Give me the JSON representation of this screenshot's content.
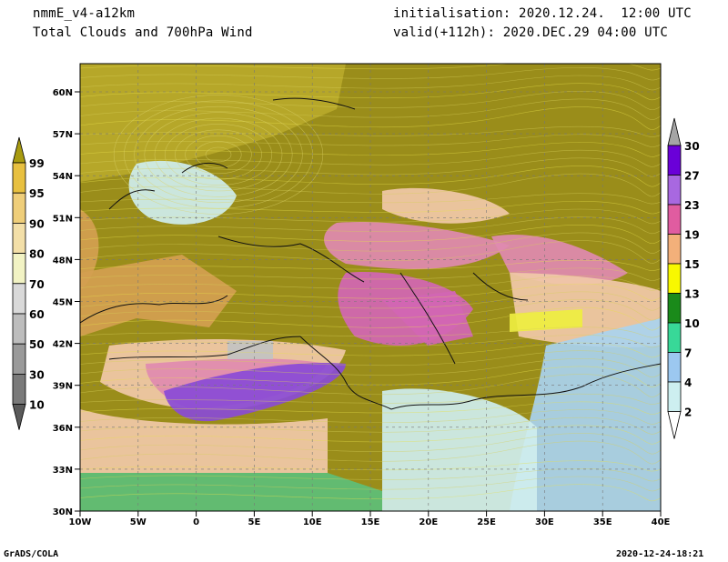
{
  "header": {
    "model": "nmmE_v4-a12km",
    "product": "Total Clouds and 700hPa Wind",
    "init": "initialisation: 2020.12.24.  12:00 UTC",
    "valid": "valid(+112h): 2020.DEC.29 04:00 UTC"
  },
  "footer": {
    "left": "GrADS/COLA",
    "right": "2020-12-24-18:21"
  },
  "axes": {
    "lat_labels": [
      "60N",
      "57N",
      "54N",
      "51N",
      "48N",
      "45N",
      "42N",
      "39N",
      "36N",
      "33N",
      "30N"
    ],
    "lon_labels": [
      "10W",
      "5W",
      "0",
      "5E",
      "10E",
      "15E",
      "20E",
      "25E",
      "30E",
      "35E",
      "40E"
    ]
  },
  "left_colorbar": {
    "labels": [
      "99",
      "95",
      "90",
      "80",
      "70",
      "60",
      "50",
      "30",
      "10"
    ],
    "colors": [
      "#a89b10",
      "#e8c040",
      "#efce7a",
      "#f3dfa8",
      "#f2f3c4",
      "#d9d9d9",
      "#bdbdbd",
      "#9a9a9a",
      "#7a7a7a",
      "#5a5a5a"
    ]
  },
  "right_colorbar": {
    "labels": [
      "30",
      "27",
      "23",
      "19",
      "15",
      "13",
      "10",
      "7",
      "4",
      "2"
    ],
    "colors": [
      "#a5a5a5",
      "#6a00d8",
      "#a868e0",
      "#e05ca0",
      "#f3b07a",
      "#f8f800",
      "#1a8a1a",
      "#38d898",
      "#9cc8f0",
      "#cdeff0",
      "#ffffff"
    ]
  },
  "map_colors": {
    "olive": "#9a8d1a",
    "yellow_olive": "#b9a92a",
    "tan": "#d4a050",
    "pink": "#e08ab0",
    "magenta": "#d266b4",
    "purple": "#8a4bd6",
    "peach": "#f1c9a8",
    "light_cyan": "#cfeeee",
    "light_blue": "#a9d2ef",
    "green": "#5dbf78",
    "grey": "#c2c2c2",
    "yellow": "#eeee40"
  }
}
